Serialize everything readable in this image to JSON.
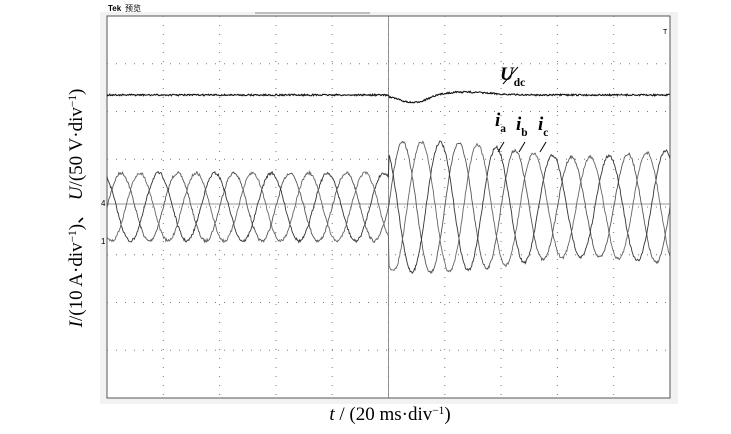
{
  "header": {
    "brand": "Tek",
    "mode": "预览"
  },
  "markers": {
    "channel_1": "1",
    "channel_4": "4",
    "trigger": "T"
  },
  "annotations": {
    "udc": [
      {
        "text": "U",
        "italic": true
      },
      {
        "text": "dc",
        "sub": true
      }
    ],
    "ia": [
      {
        "text": "i",
        "italic": true
      },
      {
        "text": "a",
        "sub": true
      }
    ],
    "ib": [
      {
        "text": "i",
        "italic": true
      },
      {
        "text": "b",
        "sub": true
      }
    ],
    "ic": [
      {
        "text": "i",
        "italic": true
      },
      {
        "text": "c",
        "sub": true
      }
    ]
  },
  "y_label": [
    {
      "text": "I",
      "italic": true
    },
    {
      "text": "/(10 A·div"
    },
    {
      "text": "−1",
      "sup": true
    },
    {
      "text": ")、 "
    },
    {
      "text": "U",
      "italic": true
    },
    {
      "text": "/(50 V·div"
    },
    {
      "text": "−1",
      "sup": true
    },
    {
      "text": ")"
    }
  ],
  "x_label": [
    {
      "text": "t",
      "italic": true
    },
    {
      "text": " / (20 ms·div"
    },
    {
      "text": "−1",
      "sup": true
    },
    {
      "text": ")"
    }
  ]
}
